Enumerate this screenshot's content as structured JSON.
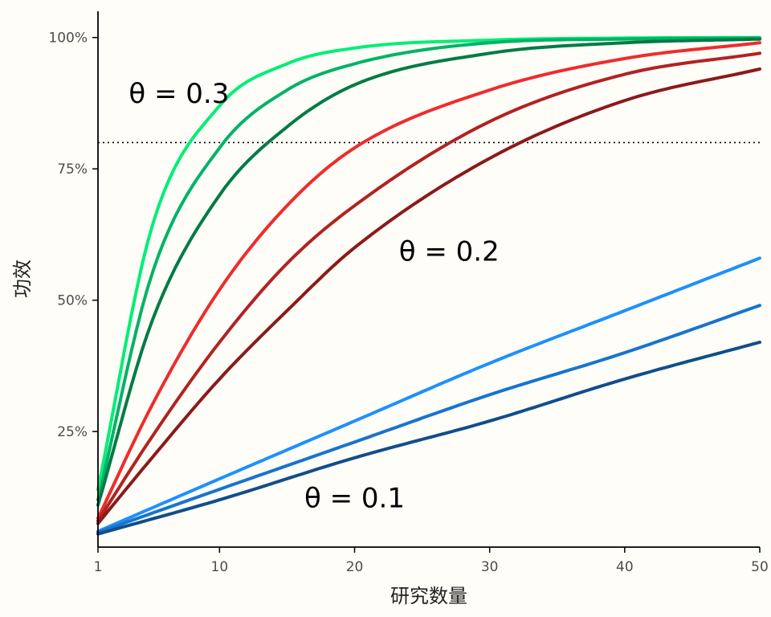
{
  "chart_data": {
    "type": "line",
    "xlabel": "研究数量",
    "ylabel": "功效",
    "xlim": [
      1,
      50
    ],
    "ylim": [
      0.03,
      1.05
    ],
    "x_ticks": [
      1,
      10,
      20,
      30,
      40,
      50
    ],
    "x_tick_labels": [
      "1",
      "10",
      "20",
      "30",
      "40",
      "50"
    ],
    "y_ticks": [
      0.25,
      0.5,
      0.75,
      1.0
    ],
    "y_tick_labels": [
      "25%",
      "50%",
      "75%",
      "100%"
    ],
    "reference_line": {
      "y": 0.8,
      "style": "dotted",
      "color": "#000000"
    },
    "grid": false,
    "legend": "none",
    "annotations": [
      {
        "text": "θ = 0.3",
        "x": 7,
        "y": 0.89
      },
      {
        "text": "θ = 0.2",
        "x": 27,
        "y": 0.59
      },
      {
        "text": "θ = 0.1",
        "x": 20,
        "y": 0.12
      }
    ],
    "series": [
      {
        "color": "#00EE76",
        "x": [
          1,
          5,
          10,
          15,
          20,
          30,
          40,
          50
        ],
        "values": [
          0.14,
          0.64,
          0.87,
          0.95,
          0.98,
          0.995,
          0.999,
          1.0
        ]
      },
      {
        "color": "#00B368",
        "x": [
          1,
          5,
          10,
          15,
          20,
          30,
          40,
          50
        ],
        "values": [
          0.12,
          0.55,
          0.79,
          0.9,
          0.95,
          0.99,
          0.997,
          0.999
        ]
      },
      {
        "color": "#007B45",
        "x": [
          1,
          5,
          10,
          15,
          20,
          30,
          40,
          50
        ],
        "values": [
          0.11,
          0.46,
          0.7,
          0.83,
          0.91,
          0.97,
          0.99,
          0.997
        ]
      },
      {
        "color": "#EE2C2C",
        "x": [
          1,
          5,
          10,
          15,
          20,
          30,
          40,
          50
        ],
        "values": [
          0.085,
          0.3,
          0.52,
          0.68,
          0.79,
          0.9,
          0.96,
          0.99
        ]
      },
      {
        "color": "#B22222",
        "x": [
          1,
          5,
          10,
          15,
          20,
          30,
          40,
          50
        ],
        "values": [
          0.08,
          0.24,
          0.42,
          0.57,
          0.68,
          0.84,
          0.93,
          0.97
        ]
      },
      {
        "color": "#8B1A1A",
        "x": [
          1,
          5,
          10,
          15,
          20,
          30,
          40,
          50
        ],
        "values": [
          0.075,
          0.2,
          0.35,
          0.48,
          0.6,
          0.77,
          0.88,
          0.94
        ]
      },
      {
        "color": "#1E90FF",
        "x": [
          1,
          10,
          20,
          30,
          40,
          50
        ],
        "values": [
          0.06,
          0.16,
          0.27,
          0.38,
          0.48,
          0.58
        ]
      },
      {
        "color": "#1874CD",
        "x": [
          1,
          10,
          20,
          30,
          40,
          50
        ],
        "values": [
          0.058,
          0.14,
          0.23,
          0.32,
          0.4,
          0.49
        ]
      },
      {
        "color": "#104E8B",
        "x": [
          1,
          10,
          20,
          30,
          40,
          50
        ],
        "values": [
          0.055,
          0.12,
          0.2,
          0.27,
          0.35,
          0.42
        ]
      }
    ]
  }
}
